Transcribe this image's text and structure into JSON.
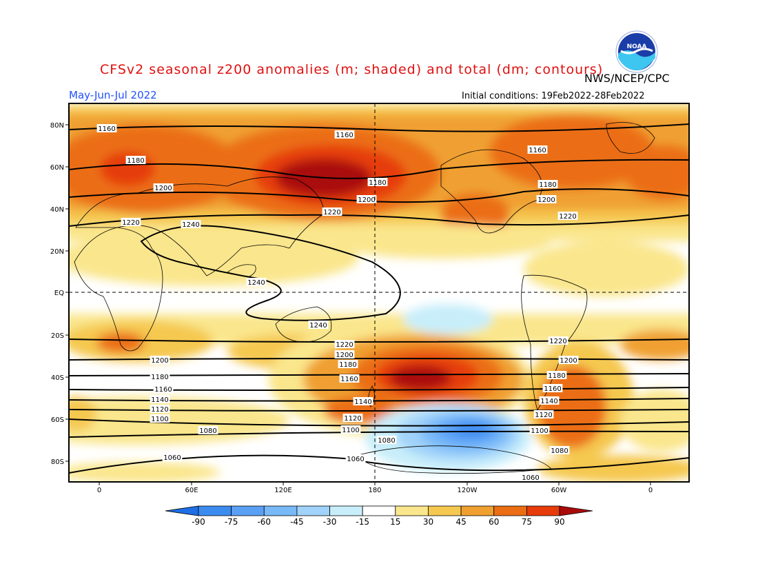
{
  "header": {
    "title": "CFSv2 seasonal z200 anomalies (m; shaded) and total (dm; contours)",
    "agency": "NWS/NCEP/CPC",
    "period": "May-Jun-Jul 2022",
    "initial_conditions": "Initial conditions: 19Feb2022-28Feb2022",
    "logo_text": "NOAA"
  },
  "map": {
    "projection": "cylindrical-equidistant",
    "lat_labels": [
      "80N",
      "60N",
      "40N",
      "20N",
      "EQ",
      "20S",
      "40S",
      "60S",
      "80S"
    ],
    "lon_labels": [
      "0",
      "60E",
      "120E",
      "180",
      "120W",
      "60W",
      "0"
    ],
    "contour_labels": [
      "1160",
      "1160",
      "1160",
      "1180",
      "1180",
      "1180",
      "1200",
      "1200",
      "1200",
      "1220",
      "1220",
      "1220",
      "1240",
      "1240",
      "1240",
      "1220",
      "1220",
      "1200",
      "1200",
      "1200",
      "1180",
      "1180",
      "1180",
      "1160",
      "1160",
      "1160",
      "1140",
      "1140",
      "1140",
      "1120",
      "1120",
      "1120",
      "1100",
      "1100",
      "1100",
      "1080",
      "1080",
      "1080",
      "1060",
      "1060",
      "1060"
    ]
  },
  "colorbar": {
    "labels": [
      "-90",
      "-75",
      "-60",
      "-45",
      "-30",
      "-15",
      "15",
      "30",
      "45",
      "60",
      "75",
      "90"
    ],
    "colors": [
      "#1e6ee6",
      "#3c8cf0",
      "#5aa0f5",
      "#78b9f8",
      "#a0d2fa",
      "#c8eefa",
      "#ffffff",
      "#fae68c",
      "#f5c850",
      "#f0a030",
      "#eb6e14",
      "#e63c0a",
      "#aa0a0a"
    ]
  }
}
